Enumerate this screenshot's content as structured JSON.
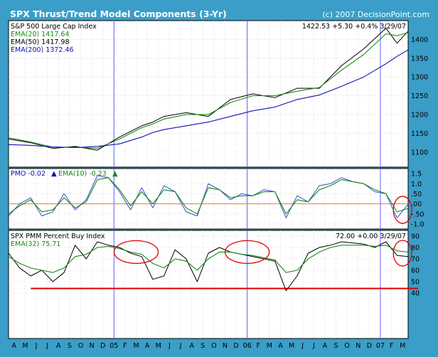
{
  "header": {
    "title": "SPX Thrust/Trend Model Components (3-Yr)",
    "credit": "(c) 2007 DecisionPoint.com"
  },
  "colors": {
    "background": "#3a9ec8",
    "panel": "#ffffff",
    "price": "#000000",
    "ema_short": "#1a8a1a",
    "ema_long": "#1010b0",
    "pmo": "#3050c8",
    "zero_line": "#e08040",
    "annotation": "#e00000",
    "year_marker": "#6060ff",
    "up_arrow": "#1010b0",
    "green_arrow": "#1a8a1a"
  },
  "chart_data": [
    {
      "type": "line",
      "title": "S&P 500 Large Cap Index",
      "quote": "1422.53 +5.30 +0.4% 3/29/07",
      "legend": [
        {
          "name": "EMA(20)",
          "value": "1417.64",
          "color": "#1a8a1a"
        },
        {
          "name": "EMA(50)",
          "value": "1417.98",
          "color": "#000000"
        },
        {
          "name": "EMA(200)",
          "value": "1372.46",
          "color": "#1010b0"
        }
      ],
      "y_ticks": [
        1100,
        1150,
        1200,
        1250,
        1300,
        1350,
        1400
      ],
      "ylim": [
        1060,
        1450
      ],
      "x": [
        0,
        2,
        4,
        6,
        8,
        10,
        12,
        13,
        14,
        16,
        18,
        20,
        22,
        24,
        26,
        28,
        30,
        32,
        34,
        35,
        36
      ],
      "series": [
        {
          "name": "S&P 500 Large Cap Index",
          "values": [
            1135,
            1125,
            1110,
            1115,
            1105,
            1140,
            1170,
            1180,
            1195,
            1205,
            1195,
            1240,
            1255,
            1245,
            1270,
            1270,
            1330,
            1375,
            1430,
            1390,
            1422
          ]
        },
        {
          "name": "EMA(20)",
          "values": [
            1138,
            1127,
            1113,
            1113,
            1110,
            1135,
            1165,
            1175,
            1188,
            1200,
            1200,
            1232,
            1250,
            1250,
            1262,
            1272,
            1318,
            1360,
            1415,
            1410,
            1418
          ]
        },
        {
          "name": "EMA(200)",
          "values": [
            1120,
            1118,
            1114,
            1112,
            1115,
            1122,
            1140,
            1152,
            1160,
            1170,
            1180,
            1195,
            1210,
            1220,
            1240,
            1252,
            1275,
            1300,
            1335,
            1355,
            1372
          ]
        }
      ]
    },
    {
      "type": "line",
      "title": "PMO",
      "pmo_value": "-0.02",
      "ema_label": "EMA(10)",
      "ema_value": "-0.23",
      "y_ticks": [
        -1.0,
        -0.5,
        0.0,
        0.5,
        1.0,
        1.5
      ],
      "y_tick_labels": [
        "-1.0",
        "-.50",
        ".00",
        ".50",
        "1.0",
        "1.5"
      ],
      "ylim": [
        -1.25,
        1.75
      ],
      "x": [
        0,
        1,
        2,
        3,
        4,
        5,
        6,
        7,
        8,
        9,
        10,
        11,
        12,
        13,
        14,
        15,
        16,
        17,
        18,
        19,
        20,
        21,
        22,
        23,
        24,
        25,
        26,
        27,
        28,
        29,
        30,
        31,
        32,
        33,
        34,
        35,
        36
      ],
      "series": [
        {
          "name": "PMO",
          "values": [
            -0.6,
            0.0,
            0.3,
            -0.6,
            -0.4,
            0.5,
            -0.3,
            0.2,
            1.4,
            1.3,
            0.6,
            -0.3,
            0.8,
            -0.2,
            0.9,
            0.6,
            -0.4,
            -0.6,
            1.0,
            0.7,
            0.2,
            0.5,
            0.4,
            0.7,
            0.6,
            -0.7,
            0.4,
            0.1,
            0.9,
            1.0,
            1.3,
            1.1,
            1.0,
            0.6,
            0.5,
            -0.7,
            -0.02
          ]
        },
        {
          "name": "EMA(10)",
          "values": [
            -0.5,
            -0.1,
            0.2,
            -0.4,
            -0.3,
            0.3,
            -0.2,
            0.1,
            1.2,
            1.3,
            0.7,
            -0.1,
            0.6,
            0.0,
            0.7,
            0.6,
            -0.2,
            -0.5,
            0.8,
            0.7,
            0.3,
            0.4,
            0.4,
            0.6,
            0.6,
            -0.5,
            0.2,
            0.1,
            0.7,
            0.9,
            1.2,
            1.1,
            1.0,
            0.7,
            0.5,
            -0.4,
            -0.23
          ]
        }
      ]
    },
    {
      "type": "line",
      "title": "SPX PMM Percent Buy Index",
      "quote": "72.00 +0.00 3/29/07",
      "ema_label": "EMA(32)",
      "ema_value": "75.71",
      "y_ticks": [
        40,
        50,
        60,
        70,
        80,
        90
      ],
      "ylim": [
        0,
        95
      ],
      "x": [
        0,
        1,
        2,
        3,
        4,
        5,
        6,
        7,
        8,
        9,
        10,
        11,
        12,
        13,
        14,
        15,
        16,
        17,
        18,
        19,
        20,
        21,
        22,
        23,
        24,
        25,
        26,
        27,
        28,
        29,
        30,
        31,
        32,
        33,
        34,
        35,
        36
      ],
      "series": [
        {
          "name": "SPX PMM Percent Buy Index",
          "values": [
            75,
            62,
            55,
            60,
            50,
            58,
            82,
            70,
            85,
            82,
            80,
            75,
            72,
            52,
            55,
            78,
            70,
            50,
            75,
            80,
            76,
            74,
            72,
            70,
            68,
            42,
            55,
            75,
            80,
            82,
            85,
            84,
            83,
            80,
            85,
            73,
            72
          ]
        },
        {
          "name": "EMA(32)",
          "values": [
            72,
            66,
            62,
            60,
            58,
            62,
            72,
            74,
            80,
            81,
            79,
            76,
            74,
            66,
            62,
            70,
            68,
            60,
            70,
            76,
            76,
            74,
            73,
            71,
            69,
            58,
            60,
            70,
            76,
            80,
            82,
            82,
            82,
            81,
            82,
            77,
            76
          ]
        }
      ]
    }
  ],
  "x_axis": {
    "month_labels": [
      "A",
      "M",
      "J",
      "J",
      "A",
      "S",
      "O",
      "N",
      "D",
      "05",
      "F",
      "M",
      "A",
      "M",
      "J",
      "J",
      "A",
      "S",
      "O",
      "N",
      "D",
      "06",
      "F",
      "M",
      "A",
      "M",
      "J",
      "J",
      "A",
      "S",
      "O",
      "N",
      "D",
      "07",
      "F",
      "M"
    ],
    "year_markers": [
      9,
      21,
      33
    ]
  },
  "support_line": {
    "value": 44
  },
  "annotations": [
    {
      "panel": 1,
      "x": 35.5,
      "y": -0.3
    },
    {
      "panel": 2,
      "x": 11.5,
      "y": 76
    },
    {
      "panel": 2,
      "x": 21.5,
      "y": 76
    },
    {
      "panel": 2,
      "x": 35.5,
      "y": 75
    }
  ]
}
